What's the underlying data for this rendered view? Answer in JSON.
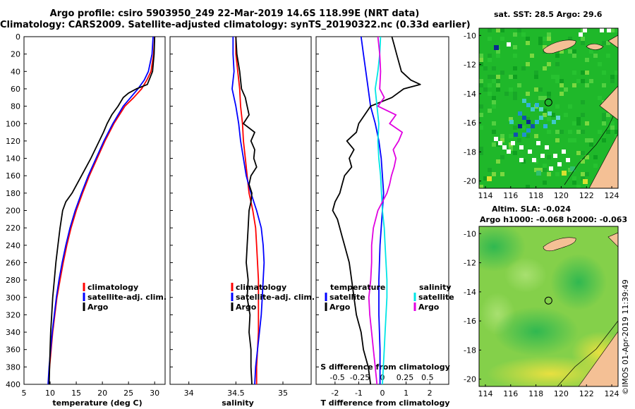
{
  "title": {
    "line1": "Argo profile: csiro 5903950_249 22-Mar-2019 14.6S 118.99E (NRT data)",
    "line2": "Climatology: CARS2009. Satellite-adjusted climatology: synTS_20190322.nc (0.33d earlier)"
  },
  "colors": {
    "climatology": "#ff0000",
    "satellite": "#0000ff",
    "argo": "#000000",
    "satellite_salinity": "#00e5e5",
    "argo_salinity": "#e000e0",
    "land": "#f4c095"
  },
  "chart_data": [
    {
      "type": "line",
      "panel": "temperature",
      "xlabel": "temperature (deg C)",
      "ylabel": "depth",
      "xlim": [
        5,
        32
      ],
      "ylim": [
        400,
        0
      ],
      "xticks": [
        "5",
        "10",
        "15",
        "20",
        "25",
        "30"
      ],
      "yticks": [
        "0",
        "20",
        "40",
        "60",
        "80",
        "100",
        "120",
        "140",
        "160",
        "180",
        "200",
        "220",
        "240",
        "260",
        "280",
        "300",
        "320",
        "340",
        "360",
        "380",
        "400"
      ],
      "legend": [
        "climatology",
        "satellite-adj. clim.",
        "Argo"
      ],
      "series": [
        {
          "name": "climatology",
          "color": "red",
          "depth": [
            0,
            20,
            40,
            50,
            60,
            70,
            80,
            100,
            120,
            140,
            160,
            180,
            200,
            220,
            240,
            260,
            280,
            300,
            320,
            340,
            360,
            380,
            400
          ],
          "values": [
            30.0,
            29.8,
            29.3,
            28.5,
            27.5,
            26.0,
            24.3,
            22.2,
            20.5,
            19.0,
            17.5,
            16.2,
            15.0,
            14.0,
            13.2,
            12.5,
            11.9,
            11.3,
            10.9,
            10.5,
            10.2,
            9.9,
            9.7
          ]
        },
        {
          "name": "satellite-adj. clim.",
          "color": "blue",
          "depth": [
            0,
            20,
            40,
            50,
            60,
            70,
            80,
            100,
            120,
            140,
            160,
            180,
            200,
            220,
            240,
            260,
            280,
            300,
            320,
            340,
            360,
            380,
            400
          ],
          "values": [
            29.7,
            29.5,
            28.8,
            28.0,
            26.8,
            25.4,
            24.0,
            22.0,
            20.3,
            18.8,
            17.3,
            16.0,
            14.8,
            13.8,
            13.0,
            12.3,
            11.7,
            11.2,
            10.8,
            10.4,
            10.1,
            9.8,
            9.6
          ]
        },
        {
          "name": "Argo",
          "color": "black",
          "depth": [
            0,
            20,
            40,
            55,
            60,
            65,
            70,
            80,
            90,
            100,
            110,
            120,
            140,
            160,
            180,
            190,
            200,
            220,
            240,
            260,
            280,
            300,
            320,
            340,
            360,
            380,
            400
          ],
          "values": [
            30.0,
            29.9,
            29.6,
            28.6,
            26.5,
            25.0,
            24.0,
            23.0,
            21.8,
            20.9,
            20.2,
            19.4,
            17.8,
            16.0,
            14.2,
            13.0,
            12.4,
            11.9,
            11.5,
            11.1,
            10.8,
            10.5,
            10.3,
            10.1,
            10.0,
            9.9,
            9.8
          ]
        }
      ]
    },
    {
      "type": "line",
      "panel": "salinity",
      "xlabel": "salinity",
      "ylabel": "depth",
      "xlim": [
        33.8,
        35.3
      ],
      "ylim": [
        400,
        0
      ],
      "xticks": [
        "34",
        "34.5",
        "35"
      ],
      "legend": [
        "climatology",
        "satellite-adj. clim.",
        "Argo"
      ],
      "series": [
        {
          "name": "climatology",
          "color": "red",
          "depth": [
            0,
            20,
            40,
            60,
            80,
            100,
            120,
            140,
            160,
            180,
            200,
            220,
            240,
            260,
            280,
            300,
            320,
            340,
            360,
            380,
            400
          ],
          "values": [
            34.5,
            34.5,
            34.52,
            34.54,
            34.55,
            34.57,
            34.58,
            34.6,
            34.62,
            34.64,
            34.68,
            34.71,
            34.72,
            34.73,
            34.74,
            34.74,
            34.74,
            34.74,
            34.73,
            34.72,
            34.72
          ]
        },
        {
          "name": "satellite-adj. clim.",
          "color": "blue",
          "depth": [
            0,
            20,
            40,
            60,
            80,
            100,
            120,
            140,
            160,
            180,
            200,
            220,
            240,
            260,
            280,
            300,
            320,
            340,
            360,
            380,
            400
          ],
          "values": [
            34.47,
            34.47,
            34.48,
            34.46,
            34.5,
            34.53,
            34.55,
            34.58,
            34.61,
            34.66,
            34.72,
            34.77,
            34.79,
            34.8,
            34.79,
            34.78,
            34.77,
            34.75,
            34.73,
            34.71,
            34.7
          ]
        },
        {
          "name": "Argo",
          "color": "black",
          "depth": [
            0,
            20,
            40,
            50,
            60,
            70,
            80,
            90,
            100,
            110,
            120,
            130,
            140,
            150,
            160,
            170,
            180,
            190,
            200,
            220,
            240,
            260,
            280,
            300,
            320,
            340,
            360,
            380,
            400
          ],
          "values": [
            34.5,
            34.51,
            34.54,
            34.55,
            34.56,
            34.6,
            34.62,
            34.64,
            34.58,
            34.7,
            34.66,
            34.7,
            34.69,
            34.72,
            34.66,
            34.64,
            34.67,
            34.66,
            34.64,
            34.63,
            34.62,
            34.61,
            34.63,
            34.62,
            34.65,
            34.64,
            34.66,
            34.66,
            34.67
          ]
        }
      ]
    },
    {
      "type": "line",
      "panel": "differences",
      "xlabel": "T difference from climatology",
      "top_label": "S difference from climatology",
      "xlim": [
        -2.8,
        2.8
      ],
      "ylim": [
        400,
        0
      ],
      "xticks": [
        "-2",
        "-1",
        "0",
        "1",
        "2"
      ],
      "top_ticks": [
        "-0.5",
        "-0.25",
        "0",
        "0.25",
        "0.5"
      ],
      "legend": {
        "temperature_title": "temperature",
        "salinity_title": "salinity",
        "temperature": [
          "satellite",
          "Argo"
        ],
        "salinity": [
          "satellite",
          "Argo"
        ]
      },
      "series": [
        {
          "name": "temperature satellite",
          "color": "blue",
          "depth": [
            0,
            20,
            40,
            60,
            80,
            100,
            120,
            140,
            160,
            180,
            200,
            240,
            280,
            320,
            360,
            400
          ],
          "values": [
            -0.9,
            -0.8,
            -0.7,
            -0.6,
            -0.5,
            -0.3,
            -0.15,
            -0.05,
            0.0,
            0.05,
            0.0,
            -0.1,
            -0.15,
            -0.15,
            -0.1,
            -0.1
          ]
        },
        {
          "name": "temperature Argo",
          "color": "black",
          "depth": [
            0,
            10,
            20,
            40,
            50,
            55,
            60,
            70,
            80,
            100,
            110,
            120,
            130,
            140,
            150,
            160,
            170,
            180,
            190,
            200,
            210,
            220,
            230,
            240,
            260,
            280,
            300,
            320,
            340,
            360,
            380,
            400
          ],
          "values": [
            0.4,
            0.5,
            0.6,
            0.8,
            1.2,
            1.6,
            0.9,
            0.4,
            -0.5,
            -1.0,
            -1.1,
            -1.5,
            -1.2,
            -1.4,
            -1.3,
            -1.6,
            -1.7,
            -1.8,
            -2.0,
            -2.1,
            -1.9,
            -1.8,
            -1.7,
            -1.6,
            -1.4,
            -1.3,
            -1.2,
            -1.1,
            -0.9,
            -0.8,
            -0.6,
            -0.5
          ]
        },
        {
          "name": "salinity satellite",
          "color": "cyan",
          "depth": [
            0,
            20,
            40,
            60,
            80,
            100,
            120,
            140,
            160,
            180,
            200,
            220,
            240,
            260,
            280,
            300,
            320,
            340,
            360,
            380,
            400
          ],
          "values": [
            -0.02,
            -0.03,
            -0.05,
            -0.08,
            -0.06,
            -0.04,
            -0.05,
            -0.04,
            -0.02,
            -0.01,
            0.0,
            0.02,
            0.03,
            0.04,
            0.05,
            0.05,
            0.04,
            0.03,
            0.02,
            0.01,
            0.0
          ]
        },
        {
          "name": "salinity Argo",
          "color": "magenta",
          "depth": [
            0,
            20,
            40,
            60,
            70,
            80,
            90,
            100,
            110,
            120,
            130,
            140,
            150,
            160,
            170,
            180,
            200,
            220,
            240,
            260,
            280,
            300,
            320,
            340,
            360,
            380,
            400
          ],
          "values": [
            -0.05,
            -0.03,
            -0.02,
            -0.03,
            0.02,
            -0.05,
            0.15,
            0.08,
            0.22,
            0.18,
            0.12,
            0.15,
            0.13,
            0.1,
            0.08,
            0.05,
            -0.05,
            -0.1,
            -0.12,
            -0.12,
            -0.13,
            -0.15,
            -0.14,
            -0.12,
            -0.1,
            -0.08,
            -0.06
          ]
        }
      ]
    },
    {
      "type": "heatmap",
      "panel": "sst_map",
      "title": "sat. SST: 28.5 Argo: 29.6",
      "xticks": [
        "114",
        "116",
        "118",
        "120",
        "122",
        "124"
      ],
      "yticks": [
        "-10",
        "-12",
        "-14",
        "-16",
        "-18",
        "-20"
      ],
      "xlim": [
        113.5,
        124.5
      ],
      "ylim": [
        -20.5,
        -9.5
      ],
      "float_position": [
        118.99,
        -14.6
      ]
    },
    {
      "type": "heatmap",
      "panel": "sla_map",
      "title_line1": "Altim. SLA: -0.024",
      "title_line2": "Argo h1000: -0.068 h2000: -0.063",
      "xticks": [
        "114",
        "116",
        "118",
        "120",
        "122",
        "124"
      ],
      "yticks": [
        "-10",
        "-12",
        "-14",
        "-16",
        "-18",
        "-20"
      ],
      "xlim": [
        113.5,
        124.5
      ],
      "ylim": [
        -20.5,
        -9.5
      ],
      "float_position": [
        118.99,
        -14.6
      ]
    }
  ],
  "watermark": "©IMOS 01-Apr-2019 11:39:49"
}
